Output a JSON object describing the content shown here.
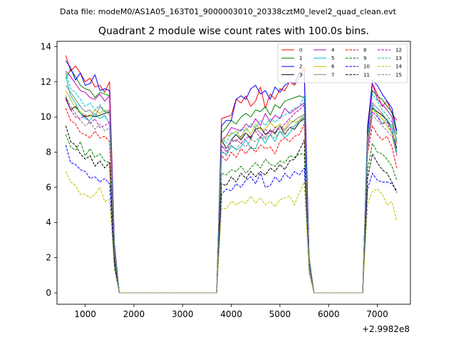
{
  "chart_data": {
    "type": "line",
    "suptitle": "Data file: modeM0/AS1A05_163T01_9000003010_20338cztM0_level2_quad_clean.evt",
    "title": "Quadrant 2 module wise count rates with 100.0s bins.",
    "xlabel": "",
    "ylabel": "",
    "offset_text": "+2.9982e8",
    "xlim": [
      420,
      7680
    ],
    "ylim": [
      -0.65,
      14.3
    ],
    "xticks": [
      1000,
      2000,
      3000,
      4000,
      5000,
      6000,
      7000
    ],
    "yticks": [
      0,
      2,
      4,
      6,
      8,
      10,
      12,
      14
    ],
    "legend_loc": "upper right",
    "legend_ncol": 4,
    "x": [
      600,
      700,
      800,
      900,
      1000,
      1100,
      1200,
      1300,
      1400,
      1500,
      1600,
      1700,
      3700,
      3800,
      3900,
      4000,
      4100,
      4200,
      4300,
      4400,
      4500,
      4600,
      4700,
      4800,
      4900,
      5000,
      5100,
      5200,
      5300,
      5400,
      5500,
      5600,
      5700,
      6700,
      6800,
      6900,
      7000,
      7100,
      7200,
      7300,
      7400
    ],
    "series": [
      {
        "name": "0",
        "color": "#ff0000",
        "dash": "solid",
        "values": [
          13.5,
          12.6,
          12.9,
          12.5,
          12.0,
          12.2,
          11.7,
          11.8,
          11.4,
          12.0,
          2.8,
          0,
          0,
          9.9,
          10.0,
          10.1,
          11.0,
          10.8,
          11.2,
          10.6,
          10.9,
          11.7,
          10.5,
          11.3,
          11.0,
          11.6,
          11.5,
          12.0,
          11.8,
          12.2,
          12.8,
          2.0,
          0,
          0,
          9.5,
          11.9,
          11.3,
          10.6,
          10.9,
          10.2,
          9.8
        ]
      },
      {
        "name": "1",
        "color": "#008000",
        "dash": "solid",
        "values": [
          12.2,
          12.7,
          12.3,
          11.8,
          11.6,
          11.5,
          11.1,
          11.4,
          11.3,
          11.2,
          2.6,
          0,
          0,
          9.1,
          9.4,
          9.8,
          9.6,
          10.0,
          10.2,
          10.0,
          10.4,
          10.3,
          10.6,
          10.1,
          10.7,
          10.5,
          10.9,
          11.0,
          11.1,
          11.2,
          11.1,
          1.9,
          0,
          0,
          9.1,
          11.5,
          11.2,
          11.0,
          10.6,
          10.3,
          9.0
        ]
      },
      {
        "name": "2",
        "color": "#0000ff",
        "dash": "solid",
        "values": [
          13.2,
          12.8,
          12.1,
          12.5,
          11.8,
          11.9,
          12.4,
          11.5,
          11.6,
          11.5,
          2.7,
          0,
          0,
          9.5,
          9.8,
          9.8,
          11.0,
          11.2,
          11.0,
          11.6,
          11.8,
          11.3,
          11.5,
          11.0,
          11.7,
          11.4,
          11.8,
          12.0,
          11.9,
          12.5,
          12.4,
          2.0,
          0,
          0,
          9.3,
          12.1,
          11.8,
          11.3,
          10.9,
          10.5,
          9.2
        ]
      },
      {
        "name": "3",
        "color": "#000000",
        "dash": "solid",
        "values": [
          11.1,
          10.4,
          10.6,
          10.2,
          10.0,
          10.1,
          10.0,
          10.1,
          10.2,
          10.3,
          2.2,
          0,
          0,
          8.7,
          8.2,
          8.7,
          9.0,
          8.7,
          9.1,
          8.8,
          9.3,
          9.4,
          9.0,
          9.2,
          9.1,
          9.5,
          9.0,
          9.4,
          9.3,
          9.7,
          9.9,
          1.8,
          0,
          0,
          8.6,
          10.5,
          10.3,
          10.1,
          9.8,
          9.3,
          8.2
        ]
      },
      {
        "name": "4",
        "color": "#bf00bf",
        "dash": "solid",
        "values": [
          12.6,
          12.3,
          11.9,
          11.5,
          11.4,
          11.1,
          11.0,
          11.3,
          10.9,
          11.2,
          2.5,
          0,
          0,
          8.7,
          8.9,
          9.4,
          9.3,
          9.2,
          9.6,
          9.4,
          9.9,
          9.5,
          10.2,
          9.7,
          10.1,
          9.9,
          10.5,
          10.2,
          10.4,
          10.6,
          10.8,
          1.9,
          0,
          0,
          8.7,
          11.9,
          11.0,
          10.7,
          10.4,
          10.0,
          8.5
        ]
      },
      {
        "name": "5",
        "color": "#00bfbf",
        "dash": "solid",
        "values": [
          12.3,
          11.2,
          10.8,
          10.2,
          9.9,
          9.8,
          10.2,
          9.9,
          10.1,
          9.6,
          2.4,
          0,
          0,
          8.0,
          7.9,
          8.4,
          8.1,
          8.3,
          8.7,
          8.2,
          8.2,
          8.9,
          8.5,
          9.0,
          8.6,
          9.2,
          8.8,
          9.1,
          9.5,
          9.8,
          10.0,
          1.8,
          0,
          0,
          8.5,
          10.7,
          10.1,
          9.6,
          9.9,
          9.3,
          8.0
        ]
      },
      {
        "name": "6",
        "color": "#bfbf00",
        "dash": "solid",
        "values": [
          11.5,
          11.0,
          10.5,
          10.3,
          10.1,
          10.0,
          10.4,
          10.2,
          10.4,
          10.1,
          2.4,
          0,
          0,
          8.5,
          8.9,
          9.0,
          9.2,
          8.8,
          9.4,
          9.0,
          9.6,
          9.3,
          9.3,
          9.7,
          9.4,
          9.6,
          9.3,
          9.8,
          9.7,
          9.8,
          10.2,
          1.9,
          0,
          0,
          8.8,
          10.4,
          10.2,
          9.9,
          9.5,
          9.1,
          8.5
        ]
      },
      {
        "name": "7",
        "color": "#808080",
        "dash": "solid",
        "values": [
          11.8,
          11.4,
          11.0,
          10.6,
          10.3,
          10.4,
          10.0,
          10.6,
          10.3,
          10.4,
          2.5,
          0,
          0,
          8.3,
          8.2,
          8.7,
          8.6,
          8.9,
          9.1,
          8.7,
          9.4,
          9.1,
          8.8,
          9.3,
          9.0,
          9.5,
          9.2,
          9.6,
          9.8,
          10.0,
          10.1,
          1.8,
          0,
          0,
          8.6,
          10.8,
          10.5,
          10.2,
          9.8,
          9.5,
          8.7
        ]
      },
      {
        "name": "8",
        "color": "#ff0000",
        "dash": "dashed",
        "values": [
          10.5,
          9.8,
          9.6,
          9.1,
          9.0,
          8.8,
          9.2,
          8.8,
          8.9,
          8.6,
          2.1,
          0,
          0,
          7.8,
          7.5,
          8.0,
          7.7,
          8.2,
          7.9,
          8.3,
          8.0,
          8.4,
          8.2,
          8.3,
          7.9,
          8.6,
          8.8,
          8.6,
          8.9,
          9.0,
          9.6,
          1.7,
          0,
          0,
          7.9,
          9.5,
          9.0,
          8.7,
          8.9,
          8.3,
          7.1
        ]
      },
      {
        "name": "9",
        "color": "#008000",
        "dash": "dashed",
        "values": [
          9.0,
          8.3,
          8.1,
          8.6,
          7.8,
          8.2,
          7.7,
          7.9,
          7.5,
          7.4,
          1.9,
          0,
          0,
          6.8,
          6.7,
          7.0,
          6.9,
          7.2,
          6.8,
          7.1,
          7.4,
          7.1,
          7.6,
          7.3,
          7.2,
          7.5,
          7.4,
          7.8,
          7.7,
          7.9,
          7.9,
          1.6,
          0,
          0,
          7.0,
          8.5,
          8.0,
          7.9,
          7.6,
          7.2,
          6.4
        ]
      },
      {
        "name": "10",
        "color": "#0000ff",
        "dash": "dashed",
        "values": [
          8.4,
          7.4,
          7.3,
          7.0,
          6.9,
          6.5,
          6.6,
          6.3,
          6.5,
          6.2,
          1.5,
          0,
          0,
          5.6,
          5.9,
          5.8,
          6.2,
          6.0,
          6.4,
          6.6,
          6.2,
          6.8,
          6.0,
          6.1,
          6.6,
          6.3,
          6.8,
          6.5,
          6.9,
          6.7,
          7.1,
          1.2,
          0,
          0,
          5.9,
          6.8,
          6.4,
          6.3,
          6.3,
          6.2,
          5.8
        ]
      },
      {
        "name": "11",
        "color": "#000000",
        "dash": "dashed",
        "values": [
          9.5,
          8.6,
          8.4,
          7.9,
          7.6,
          7.8,
          7.2,
          7.5,
          7.1,
          7.4,
          1.8,
          0,
          0,
          6.2,
          6.1,
          6.6,
          6.3,
          6.8,
          6.5,
          6.9,
          6.6,
          6.9,
          6.7,
          7.1,
          6.9,
          7.3,
          7.0,
          7.5,
          7.6,
          8.1,
          8.7,
          1.5,
          0,
          0,
          6.5,
          7.9,
          7.4,
          7.0,
          6.8,
          6.3,
          5.7
        ]
      },
      {
        "name": "12",
        "color": "#bf00bf",
        "dash": "dashed",
        "values": [
          11.0,
          10.4,
          10.0,
          9.9,
          10.1,
          9.6,
          9.9,
          9.4,
          9.5,
          9.7,
          2.3,
          0,
          0,
          8.4,
          8.0,
          8.6,
          8.7,
          8.5,
          8.8,
          8.9,
          9.2,
          8.8,
          9.3,
          9.0,
          9.4,
          9.3,
          9.6,
          9.9,
          10.2,
          10.4,
          10.7,
          1.8,
          0,
          0,
          8.3,
          10.3,
          10.0,
          9.6,
          9.7,
          9.1,
          7.8
        ]
      },
      {
        "name": "13",
        "color": "#00bfbf",
        "dash": "dashed",
        "values": [
          12.5,
          11.6,
          11.4,
          11.0,
          10.6,
          10.8,
          10.4,
          10.7,
          10.3,
          10.2,
          2.5,
          0,
          0,
          8.8,
          8.5,
          9.1,
          9.0,
          9.3,
          9.2,
          9.6,
          9.4,
          9.8,
          9.5,
          9.9,
          9.7,
          10.0,
          10.1,
          10.3,
          10.5,
          10.6,
          11.2,
          1.9,
          0,
          0,
          8.9,
          11.3,
          10.9,
          10.4,
          10.1,
          9.7,
          8.6
        ]
      },
      {
        "name": "14",
        "color": "#bfbf00",
        "dash": "dashed",
        "values": [
          6.9,
          6.3,
          6.1,
          5.6,
          5.6,
          5.4,
          5.6,
          6.0,
          5.2,
          5.3,
          1.3,
          0,
          0,
          4.8,
          4.8,
          5.2,
          5.0,
          5.2,
          5.1,
          5.5,
          5.1,
          5.4,
          5.0,
          5.2,
          4.9,
          5.3,
          5.4,
          5.5,
          5.0,
          5.7,
          6.3,
          1.1,
          0,
          0,
          5.0,
          5.8,
          5.9,
          5.6,
          5.0,
          5.2,
          4.1
        ]
      },
      {
        "name": "15",
        "color": "#808080",
        "dash": "dashed",
        "values": [
          11.2,
          10.6,
          10.2,
          9.8,
          9.5,
          9.7,
          9.3,
          9.6,
          9.2,
          9.4,
          2.2,
          0,
          0,
          8.1,
          7.8,
          8.3,
          8.2,
          8.5,
          8.3,
          8.7,
          8.6,
          8.9,
          8.7,
          9.0,
          8.8,
          9.2,
          9.0,
          9.4,
          9.5,
          9.7,
          10.0,
          1.7,
          0,
          0,
          8.0,
          10.1,
          9.8,
          9.5,
          9.2,
          8.9,
          7.9
        ]
      }
    ]
  }
}
